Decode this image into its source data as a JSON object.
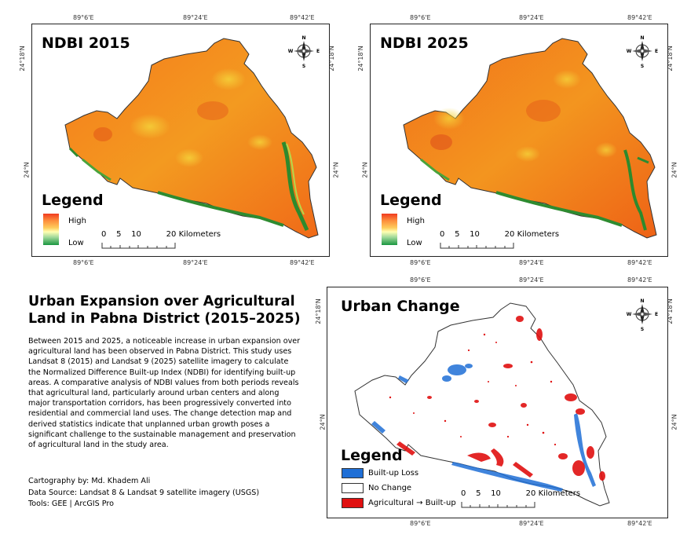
{
  "maps": [
    {
      "title": "NDBI 2015",
      "legend_title": "Legend",
      "legend_high": "High",
      "legend_low": "Low",
      "scale_label": "0    5    10          20 Kilometers"
    },
    {
      "title": "NDBI 2025",
      "legend_title": "Legend",
      "legend_high": "High",
      "legend_low": "Low",
      "scale_label": "0    5    10          20 Kilometers"
    }
  ],
  "ticks": {
    "lon": [
      "89°6'E",
      "89°24'E",
      "89°42'E"
    ],
    "lat_top": "24°18'N",
    "lat_mid": "24°N"
  },
  "compass": {
    "n": "N",
    "s": "S",
    "e": "E",
    "w": "W"
  },
  "change_map": {
    "title": "Urban Change",
    "legend_title": "Legend",
    "classes": [
      {
        "label": "Built-up Loss",
        "color": "#1f6fd6"
      },
      {
        "label": "No Change",
        "color": "#ffffff"
      },
      {
        "label": "Agricultural → Built-up",
        "color": "#e01010"
      }
    ],
    "scale_label": "0    5    10          20 Kilometers"
  },
  "info": {
    "heading": "Urban Expansion over Agricultural Land in Pabna District (2015–2025)",
    "body": "Between 2015 and 2025, a noticeable increase in urban expansion over agricultural land has been observed in Pabna District. This study uses Landsat 8 (2015) and Landsat 9 (2025) satellite imagery to calculate the Normalized Difference Built-up Index (NDBI) for identifying built-up areas. A comparative analysis of NDBI values from both periods reveals that agricultural land, particularly around urban centers and along major transportation corridors, has been progressively converted into residential and commercial land uses. The change detection map and derived statistics indicate that unplanned urban growth poses a significant challenge to the sustainable management and preservation of agricultural land in the study area.",
    "cartography": "Cartography by: Md. Khadem Ali",
    "source": "Data Source: Landsat 8 & Landsat 9 satellite imagery (USGS)",
    "tools": "Tools: GEE | ArcGIS Pro"
  }
}
